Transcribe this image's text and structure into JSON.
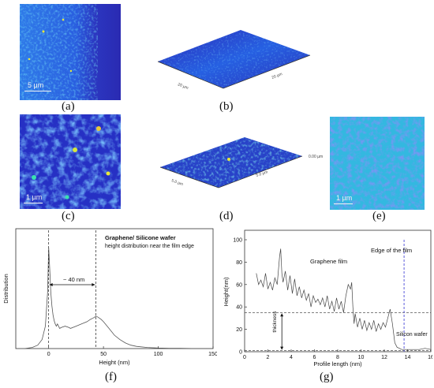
{
  "captions": {
    "a": "(a)",
    "b": "(b)",
    "c": "(c)",
    "d": "(d)",
    "e": "(e)",
    "f": "(f)",
    "g": "(g)"
  },
  "panel_a": {
    "scale_label": "5 µm"
  },
  "panel_b": {
    "axis_x_label": "20 µm",
    "axis_y_label": "20 µm"
  },
  "panel_c": {
    "scale_label": "1 µm"
  },
  "panel_d": {
    "axis_x_label": "5.0 µm",
    "axis_y_label": "5.0 µm",
    "z_label": "0.00 µm"
  },
  "panel_e": {
    "scale_label": "1 µm"
  },
  "colors": {
    "afm_dark": "#2828b8",
    "afm_mid": "#1f6cf0",
    "afm_light": "#35c4e8",
    "afm_highlight": "#e8e83a",
    "edge_line": "#4a4ad8"
  },
  "chart_data": [
    {
      "type": "line",
      "title": "Graphene/ Silicone wafer",
      "subtitle": "height distribution near the film edge",
      "xlabel": "Height (nm)",
      "ylabel": "Distribution",
      "xlim": [
        -30,
        150
      ],
      "xticks": [
        "0",
        "50",
        "100",
        "150"
      ],
      "annotation": "~ 40 nm",
      "vlines_x": [
        0,
        43
      ],
      "x": [
        -22,
        -15,
        -10,
        -6,
        -3,
        -1,
        0,
        1,
        2,
        3,
        4,
        5,
        6,
        7,
        8,
        9,
        10,
        12,
        15,
        18,
        20,
        25,
        30,
        35,
        38,
        40,
        42,
        43,
        45,
        48,
        50,
        55,
        60,
        65,
        70,
        75,
        80,
        90,
        100,
        110,
        120,
        130,
        140,
        150
      ],
      "values": [
        0.0,
        0.01,
        0.03,
        0.08,
        0.2,
        0.5,
        0.9,
        0.7,
        0.5,
        0.38,
        0.3,
        0.25,
        0.22,
        0.2,
        0.22,
        0.2,
        0.18,
        0.19,
        0.2,
        0.19,
        0.18,
        0.2,
        0.22,
        0.24,
        0.26,
        0.27,
        0.28,
        0.29,
        0.28,
        0.26,
        0.24,
        0.18,
        0.12,
        0.08,
        0.05,
        0.03,
        0.02,
        0.01,
        0.005,
        0.003,
        0.002,
        0.001,
        0.001,
        0.0
      ]
    },
    {
      "type": "line",
      "xlabel": "Profile length (nm)",
      "ylabel": "Height(nm)",
      "xlim": [
        0,
        16
      ],
      "ylim": [
        0,
        100
      ],
      "xticks": [
        "0",
        "2",
        "4",
        "6",
        "8",
        "10",
        "12",
        "14",
        "16"
      ],
      "yticks": [
        "0",
        "20",
        "40",
        "60",
        "80",
        "100"
      ],
      "annotations": {
        "film": "Graphene film",
        "edge": "Edge of the film",
        "wafer": "Silicon wafer",
        "thickness": "thickness"
      },
      "edge_x": 13.7,
      "hlines_y": [
        35,
        1
      ],
      "x": [
        1.0,
        1.2,
        1.4,
        1.6,
        1.8,
        2.0,
        2.2,
        2.4,
        2.6,
        2.8,
        3.0,
        3.1,
        3.2,
        3.3,
        3.5,
        3.7,
        3.9,
        4.1,
        4.3,
        4.5,
        4.7,
        4.9,
        5.1,
        5.3,
        5.5,
        5.7,
        5.9,
        6.1,
        6.3,
        6.5,
        6.7,
        6.9,
        7.1,
        7.3,
        7.5,
        7.7,
        7.9,
        8.1,
        8.3,
        8.5,
        8.7,
        8.9,
        9.1,
        9.2,
        9.3,
        9.4,
        9.5,
        9.7,
        9.9,
        10.1,
        10.3,
        10.5,
        10.7,
        10.9,
        11.1,
        11.3,
        11.5,
        11.7,
        11.9,
        12.1,
        12.3,
        12.5,
        12.7,
        12.9,
        13.1,
        13.3,
        13.5,
        13.7,
        14.0,
        14.5,
        15.0,
        15.5,
        16.0
      ],
      "values": [
        70,
        60,
        64,
        58,
        70,
        56,
        62,
        55,
        66,
        60,
        85,
        92,
        70,
        62,
        72,
        55,
        68,
        52,
        65,
        50,
        58,
        48,
        55,
        46,
        52,
        40,
        50,
        44,
        47,
        42,
        48,
        40,
        50,
        38,
        45,
        36,
        48,
        38,
        45,
        35,
        50,
        60,
        56,
        62,
        40,
        25,
        34,
        22,
        30,
        20,
        28,
        19,
        26,
        20,
        28,
        18,
        25,
        20,
        26,
        22,
        30,
        38,
        25,
        8,
        4,
        3,
        2,
        2,
        2,
        2,
        2,
        3,
        2
      ]
    }
  ]
}
